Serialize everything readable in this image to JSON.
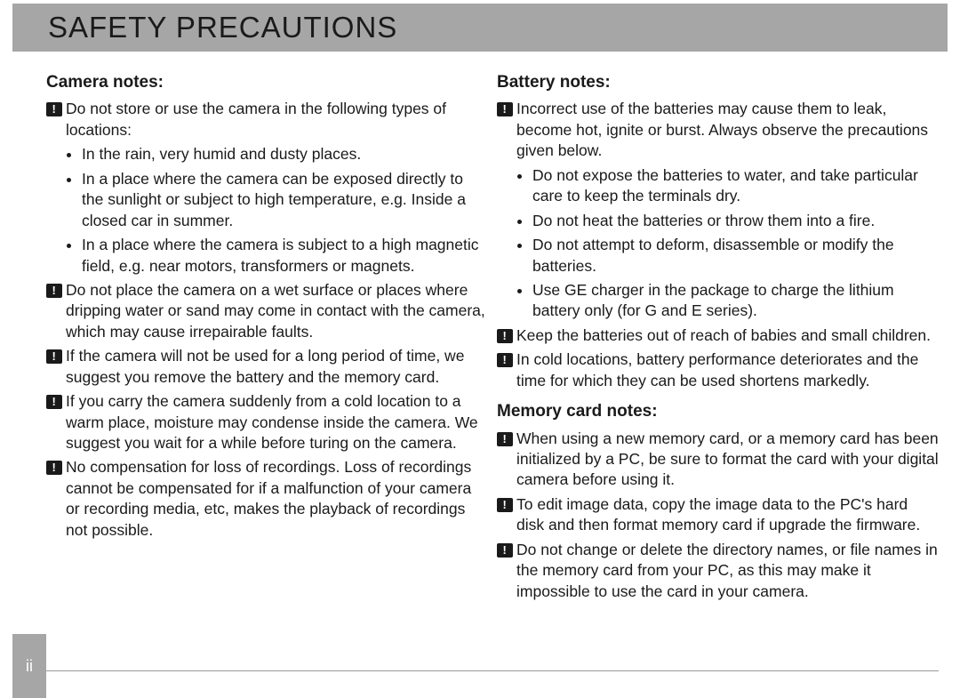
{
  "header": {
    "title": "SAFETY PRECAUTIONS"
  },
  "page_number": "ii",
  "left": {
    "camera_title": "Camera notes:",
    "camera": {
      "n1_intro": "Do not store or use the camera in the following types of locations:",
      "n1_bullets": [
        "In the rain, very humid and dusty places.",
        "In a place where the camera can be exposed directly to the sunlight or subject to high temperature, e.g. Inside a closed car in summer.",
        "In a place where the camera is subject to a high magnetic field, e.g. near motors, transformers or magnets."
      ],
      "n2": "Do not place the camera on a wet surface or places where dripping water or sand may come in contact with the camera, which may cause irrepairable faults.",
      "n3": "If the camera will not be used for a long period of time, we suggest you remove the battery and the memory card.",
      "n4": "If you carry the camera suddenly from a cold location to a warm place, moisture may condense inside the camera. We suggest you wait for a while before turing on the camera.",
      "n5": "No compensation for loss of recordings. Loss of recordings cannot be compensated for if a malfunction of your camera or recording media, etc, makes the playback of recordings not possible."
    }
  },
  "right": {
    "battery_title": "Battery notes:",
    "battery": {
      "n1_intro": "Incorrect use of the batteries may cause them to leak, become hot, ignite or burst. Always observe the precautions given below.",
      "n1_bullets": [
        "Do not expose the batteries to water, and take particular care to keep the terminals dry.",
        "Do not heat the batteries or throw them into a fire.",
        "Do not attempt to deform, disassemble or modify the batteries.",
        "Use GE charger in the package to charge the lithium battery only (for G and E series)."
      ],
      "n2": "Keep the batteries out of reach of babies and small children.",
      "n3": "In cold locations, battery performance deteriorates and the time for which they can be used shortens markedly."
    },
    "memory_title": "Memory card notes:",
    "memory": {
      "n1": "When using a new  memory card, or a memory card  has been initialized by a PC, be sure to format the card with your digital camera before using it.",
      "n2": "To edit image data, copy the image data to the PC's hard disk and then format memory card if upgrade the firmware.",
      "n3": "Do not change or delete the directory names, or file names in the memory card from your PC, as this may make it impossible to use the card in your camera."
    }
  }
}
